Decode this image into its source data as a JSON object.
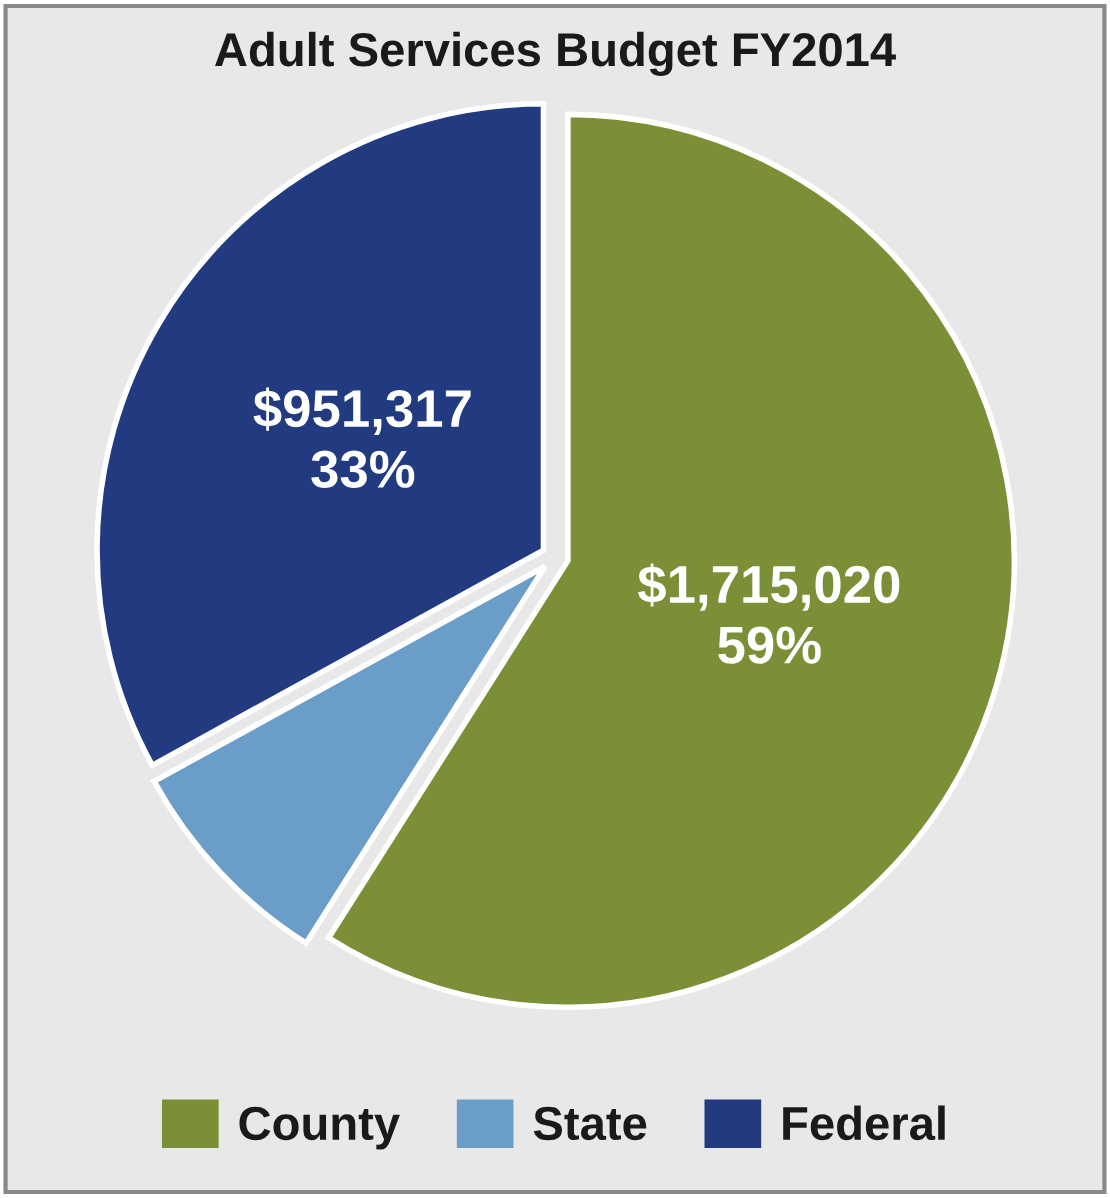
{
  "chart_data": {
    "type": "pie",
    "title": "Adult Services Budget FY2014",
    "categories": [
      "County",
      "State",
      "Federal"
    ],
    "values": [
      59,
      8,
      33
    ],
    "value_labels": [
      "$1,715,020\n59%",
      null,
      "$951,317\n33%"
    ],
    "colors": [
      "#7b8f37",
      "#6b9dc9",
      "#213a80"
    ],
    "legend": "bottom"
  }
}
